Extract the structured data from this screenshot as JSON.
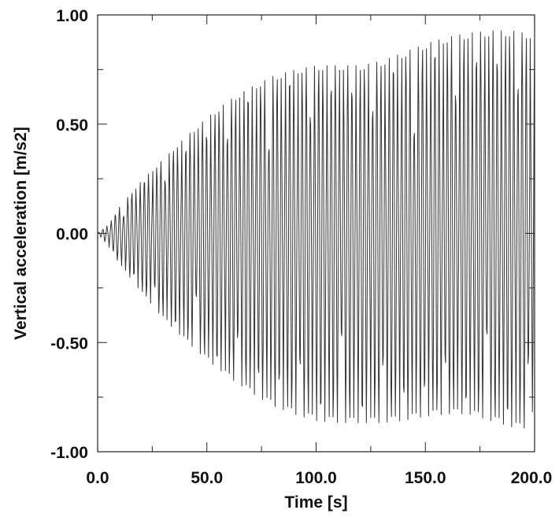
{
  "chart_data": {
    "type": "line",
    "title": "",
    "xlabel": "Time [s]",
    "ylabel": "Vertical acceleration [m/s2]",
    "xlim": [
      0,
      200
    ],
    "ylim": [
      -1.0,
      1.0
    ],
    "x_ticks": [
      "0.0",
      "50.0",
      "100.0",
      "150.0",
      "200.0"
    ],
    "y_ticks": [
      "1.00",
      "0.50",
      "0.00",
      "-0.50",
      "-1.00"
    ],
    "x_minor_ticks": [
      25,
      75,
      125,
      175
    ],
    "y_minor_ticks": [
      0.75,
      0.25,
      -0.25,
      -0.75
    ],
    "grid": false,
    "legend": "none",
    "series_color": "#333333",
    "series": [
      {
        "name": "",
        "oscillation_period_s": 1.9,
        "sample_step_s": 0.25,
        "upper_envelope": {
          "t": [
            0,
            5,
            10,
            20,
            30,
            40,
            50,
            60,
            70,
            80,
            90,
            100,
            110,
            120,
            130,
            140,
            150,
            160,
            170,
            180,
            190,
            195,
            200
          ],
          "v": [
            0.0,
            0.04,
            0.12,
            0.24,
            0.34,
            0.44,
            0.53,
            0.61,
            0.67,
            0.72,
            0.75,
            0.77,
            0.77,
            0.77,
            0.79,
            0.83,
            0.87,
            0.9,
            0.92,
            0.93,
            0.93,
            0.92,
            0.92
          ]
        },
        "lower_envelope": {
          "t": [
            0,
            5,
            10,
            20,
            30,
            40,
            50,
            60,
            70,
            80,
            90,
            100,
            110,
            120,
            130,
            140,
            150,
            160,
            170,
            180,
            190,
            195,
            200
          ],
          "v": [
            0.0,
            -0.06,
            -0.14,
            -0.27,
            -0.39,
            -0.49,
            -0.58,
            -0.66,
            -0.73,
            -0.79,
            -0.83,
            -0.86,
            -0.87,
            -0.87,
            -0.87,
            -0.86,
            -0.84,
            -0.83,
            -0.83,
            -0.86,
            -0.89,
            -0.9,
            -0.8
          ]
        }
      }
    ]
  }
}
